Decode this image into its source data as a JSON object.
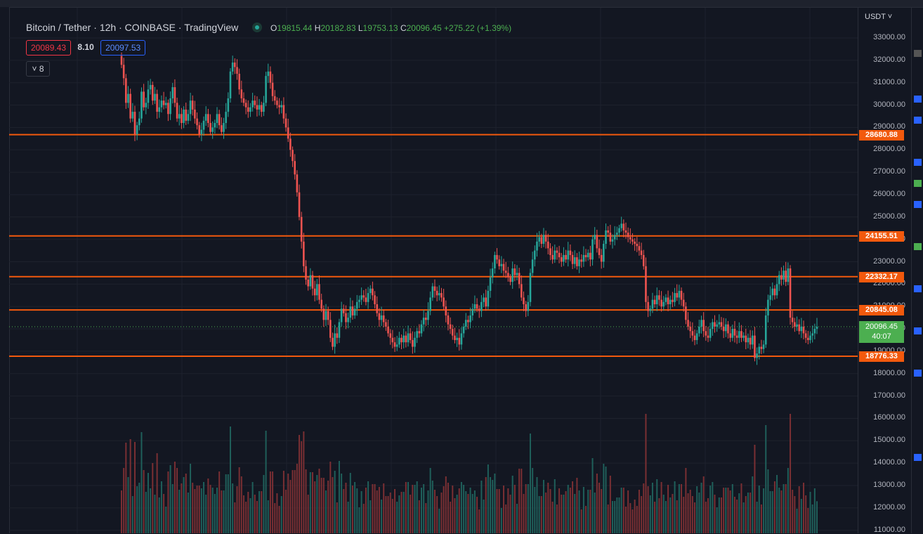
{
  "header": {
    "symbol": "Bitcoin / Tether",
    "interval": "12h",
    "exchange": "COINBASE",
    "source": "TradingView",
    "ohlc": {
      "o_label": "O",
      "o": "19815.44",
      "h_label": "H",
      "h": "20182.83",
      "l_label": "L",
      "l": "19753.13",
      "c_label": "C",
      "c": "20096.45",
      "change": "+275.22 (+1.39%)"
    }
  },
  "trading": {
    "bid": "20089.43",
    "spread": "8.10",
    "ask": "20097.53"
  },
  "collapse_button": {
    "label": "8"
  },
  "price_axis": {
    "currency": "USDT ˅",
    "ticks": [
      "33000.00",
      "32000.00",
      "31000.00",
      "30000.00",
      "29000.00",
      "28000.00",
      "27000.00",
      "26000.00",
      "25000.00",
      "24000.00",
      "23000.00",
      "22000.00",
      "21000.00",
      "20000.00",
      "19000.00",
      "18000.00",
      "17000.00",
      "16000.00",
      "15000.00",
      "14000.00",
      "13000.00",
      "12000.00",
      "11000.00"
    ],
    "current_price": "20096.45",
    "countdown": "40:07"
  },
  "chart_data": {
    "type": "candlestick",
    "interval": "12h",
    "ylim": [
      11000,
      33500
    ],
    "horizontal_levels": [
      28680.88,
      24155.51,
      22332.17,
      20845.08,
      18776.33
    ],
    "level_labels": [
      "28680.88",
      "24155.51",
      "22332.17",
      "20845.08",
      "18776.33"
    ],
    "last_price": 20096.45,
    "closes": [
      31800,
      31200,
      30100,
      30500,
      29400,
      29700,
      28700,
      29100,
      29400,
      30600,
      29900,
      30100,
      30700,
      30900,
      30200,
      30500,
      29700,
      29900,
      30200,
      30000,
      30100,
      29600,
      30300,
      30800,
      30100,
      29400,
      29600,
      29200,
      29800,
      29300,
      29600,
      30200,
      29800,
      29400,
      29100,
      28700,
      28900,
      29300,
      29600,
      29200,
      28800,
      29000,
      29200,
      29600,
      29100,
      28800,
      29200,
      29700,
      30300,
      31500,
      31900,
      31700,
      31400,
      30700,
      30300,
      30100,
      29900,
      29700,
      29900,
      30200,
      30000,
      29800,
      30000,
      29700,
      30100,
      31300,
      31500,
      31000,
      30400,
      30200,
      30000,
      29900,
      30000,
      29400,
      29000,
      28500,
      28000,
      27500,
      26900,
      26100,
      25000,
      23900,
      22800,
      22200,
      21900,
      22400,
      21800,
      21500,
      22000,
      21300,
      20900,
      20400,
      20800,
      20400,
      19600,
      19200,
      19800,
      19600,
      20300,
      20900,
      20700,
      20300,
      20500,
      21000,
      20600,
      20900,
      21200,
      21300,
      21500,
      21400,
      21200,
      21600,
      21800,
      21500,
      21100,
      20700,
      20400,
      20600,
      20300,
      20100,
      19800,
      19600,
      19400,
      19200,
      19300,
      19600,
      19400,
      19700,
      19400,
      19800,
      19500,
      19200,
      19600,
      19900,
      19800,
      20200,
      20500,
      20400,
      20800,
      21400,
      21900,
      21700,
      21500,
      21600,
      21400,
      21000,
      20600,
      20200,
      20000,
      19700,
      19500,
      19600,
      19300,
      19800,
      20100,
      20400,
      20300,
      20600,
      20900,
      21100,
      20900,
      20800,
      21200,
      21400,
      21000,
      21700,
      22300,
      22700,
      23300,
      23100,
      22800,
      22900,
      22600,
      22500,
      22300,
      22100,
      22700,
      22400,
      22500,
      22000,
      21400,
      21100,
      20800,
      21200,
      22500,
      23100,
      23500,
      23900,
      24100,
      23800,
      24200,
      23900,
      23600,
      23300,
      23100,
      23500,
      23400,
      23200,
      23000,
      23300,
      23100,
      23500,
      23300,
      22900,
      23200,
      22800,
      23100,
      23000,
      23300,
      23200,
      23400,
      23100,
      24000,
      24200,
      23600,
      23300,
      23000,
      23800,
      24400,
      24300,
      23900,
      24000,
      24200,
      24300,
      24500,
      24700,
      24400,
      24300,
      24100,
      24000,
      23900,
      23800,
      23700,
      23500,
      23300,
      22800,
      21200,
      20800,
      20900,
      21300,
      21100,
      21500,
      21300,
      21000,
      21200,
      21400,
      21100,
      21300,
      21200,
      21600,
      21400,
      21700,
      21300,
      21000,
      20400,
      20100,
      19900,
      19700,
      19500,
      19800,
      20100,
      20400,
      19900,
      19700,
      19600,
      20000,
      20300,
      20100,
      20200,
      20300,
      20100,
      19900,
      20200,
      19800,
      19600,
      20000,
      19700,
      19600,
      19900,
      19600,
      19700,
      19400,
      19600,
      19300,
      19700,
      18700,
      18900,
      19200,
      19100,
      19300,
      20600,
      21300,
      21500,
      21800,
      21500,
      22000,
      22400,
      22200,
      22600,
      22100,
      22700,
      20500,
      20300,
      20100,
      20200,
      19900,
      20100,
      19800,
      19600,
      19500,
      19700,
      19800,
      20000,
      20096.45
    ]
  },
  "icons": [
    "chevron-down-icon",
    "live-status-dot-icon",
    "alert-flag-icon"
  ],
  "colors": {
    "up": "#26a69a",
    "down": "#ef5350",
    "level_line": "#f2590d",
    "last_price_tag": "#4caf50",
    "background": "#131722"
  }
}
